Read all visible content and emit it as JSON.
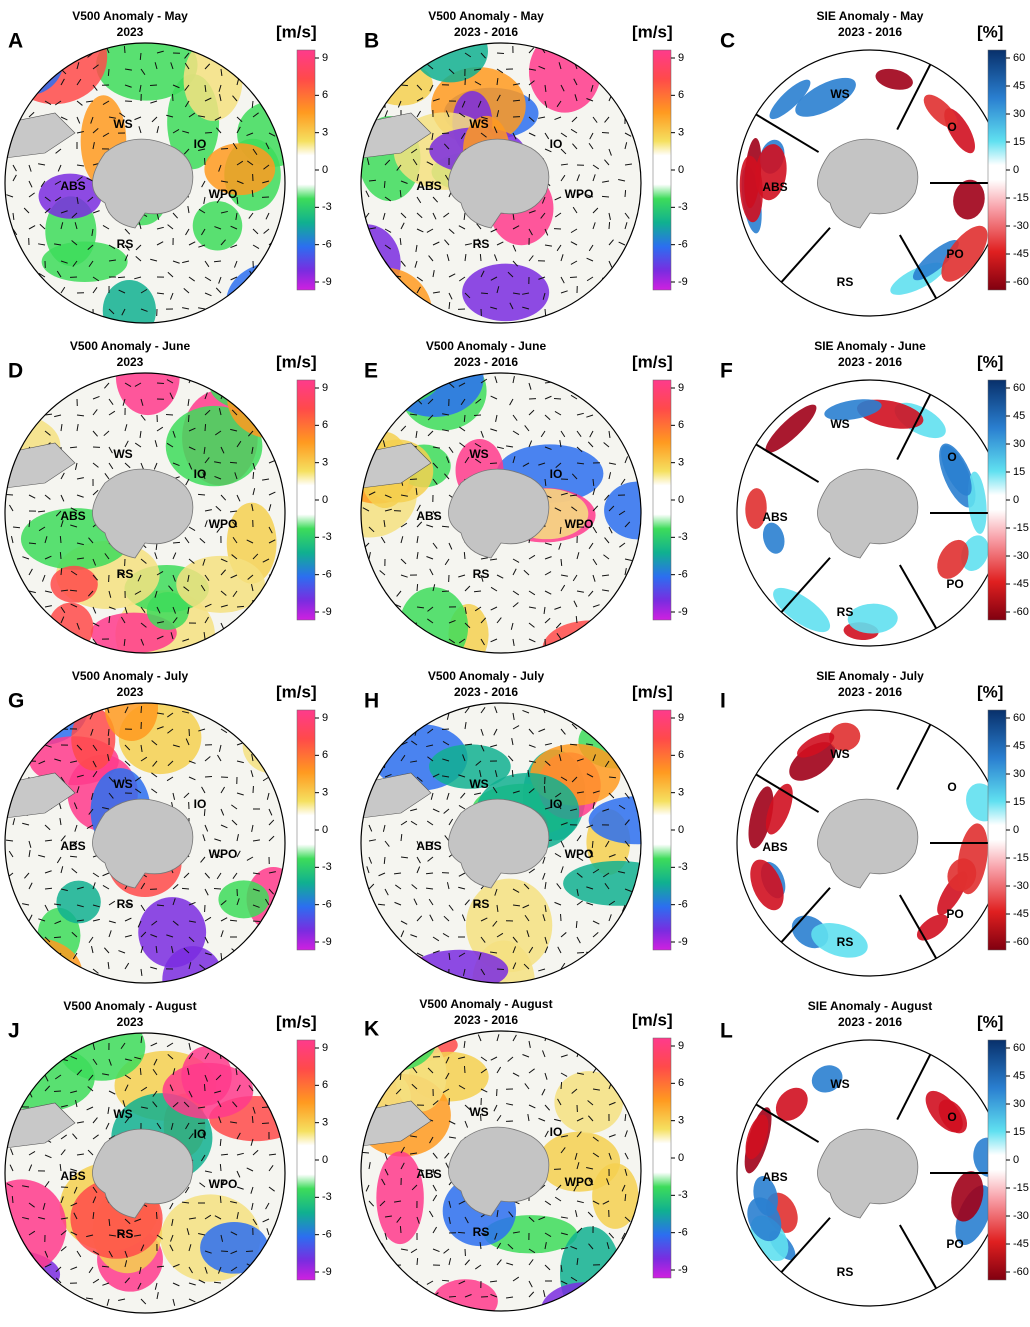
{
  "scales": {
    "wind": {
      "unit": "[m/s]",
      "ticks": [
        9,
        6,
        3,
        0,
        -3,
        -6,
        -9
      ]
    },
    "sie": {
      "unit": "[%]",
      "ticks": [
        60,
        45,
        30,
        15,
        0,
        -15,
        -30,
        -45,
        -60
      ]
    }
  },
  "panels": [
    {
      "letter": "A",
      "title": "V500 Anomaly - May",
      "subtitle": "2023",
      "scale": "wind",
      "regions": [
        "WS",
        "IO",
        "ABS",
        "WPO",
        "RS"
      ]
    },
    {
      "letter": "B",
      "title": "V500 Anomaly - May",
      "subtitle": "2023 - 2016",
      "scale": "wind",
      "regions": [
        "WS",
        "IO",
        "ABS",
        "WPO",
        "RS"
      ]
    },
    {
      "letter": "C",
      "title": "SIE Anomaly  - May",
      "subtitle": "2023 - 2016",
      "scale": "sie",
      "regions": [
        "WS",
        "O",
        "ABS",
        "PO",
        "RS"
      ]
    },
    {
      "letter": "D",
      "title": "V500 Anomaly - June",
      "subtitle": "2023",
      "scale": "wind",
      "regions": [
        "WS",
        "IO",
        "ABS",
        "WPO",
        "RS"
      ]
    },
    {
      "letter": "E",
      "title": "V500 Anomaly - June",
      "subtitle": "2023 - 2016",
      "scale": "wind",
      "regions": [
        "WS",
        "IO",
        "ABS",
        "WPO",
        "RS"
      ]
    },
    {
      "letter": "F",
      "title": "SIE Anomaly  - June",
      "subtitle": "2023 - 2016",
      "scale": "sie",
      "regions": [
        "WS",
        "O",
        "ABS",
        "PO",
        "RS"
      ]
    },
    {
      "letter": "G",
      "title": "V500 Anomaly - July",
      "subtitle": "2023",
      "scale": "wind",
      "regions": [
        "WS",
        "IO",
        "ABS",
        "WPO",
        "RS"
      ]
    },
    {
      "letter": "H",
      "title": "V500 Anomaly - July",
      "subtitle": "2023 - 2016",
      "scale": "wind",
      "regions": [
        "WS",
        "IO",
        "ABS",
        "WPO",
        "RS"
      ]
    },
    {
      "letter": "I",
      "title": "SIE Anomaly  - July",
      "subtitle": "2023 - 2016",
      "scale": "sie",
      "regions": [
        "WS",
        "O",
        "ABS",
        "PO",
        "RS"
      ]
    },
    {
      "letter": "J",
      "title": "V500 Anomaly - August",
      "subtitle": "2023",
      "scale": "wind",
      "regions": [
        "WS",
        "IO",
        "ABS",
        "WPO",
        "RS"
      ]
    },
    {
      "letter": "K",
      "title": "V500 Anomaly - August",
      "subtitle": "2023 - 2016",
      "scale": "wind",
      "regions": [
        "WS",
        "IO",
        "ABS",
        "WPO",
        "RS"
      ]
    },
    {
      "letter": "L",
      "title": "SIE Anomaly  - August",
      "subtitle": "2023 - 2016",
      "scale": "sie",
      "regions": [
        "WS",
        "O",
        "ABS",
        "PO",
        "RS"
      ]
    }
  ]
}
